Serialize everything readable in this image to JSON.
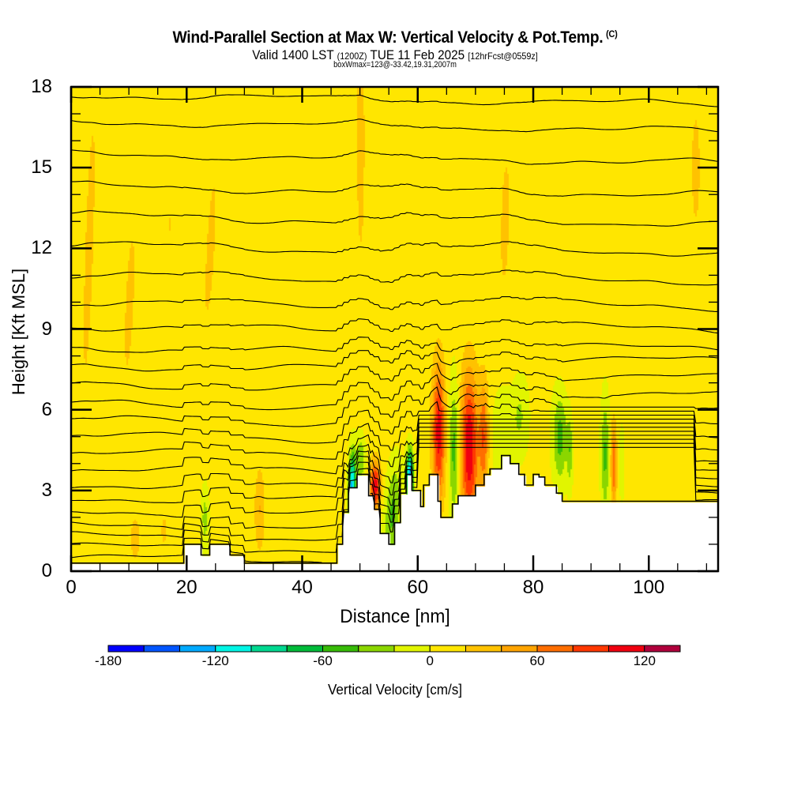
{
  "chart_data": {
    "type": "heatmap",
    "title": "Wind-Parallel Section at Max W: Vertical Velocity & Pot.Temp.",
    "title_mark": "(C)",
    "subtitle_main": "Valid 1400 LST",
    "subtitle_utc": "(1200Z)",
    "subtitle_date": "TUE 11 Feb 2025",
    "subtitle_fcst": "[12hrFcst@0559z]",
    "subtitle2": "boxWmax=123@-33.42,19.31,2007m",
    "xlabel": "Distance [nm]",
    "ylabel": "Height [Kft MSL]",
    "xlim": [
      0,
      112
    ],
    "ylim": [
      0,
      18
    ],
    "xticks": [
      "0",
      "20",
      "40",
      "60",
      "80",
      "100"
    ],
    "xtick_values": [
      0,
      20,
      40,
      60,
      80,
      100
    ],
    "yticks": [
      "0",
      "3",
      "6",
      "9",
      "12",
      "15",
      "18"
    ],
    "ytick_values": [
      0,
      3,
      6,
      9,
      12,
      15,
      18
    ],
    "colorbar": {
      "label": "Vertical Velocity [cm/s]",
      "bounds": [
        -180,
        -160,
        -140,
        -120,
        -100,
        -80,
        -60,
        -40,
        -20,
        0,
        20,
        40,
        60,
        80,
        100,
        120,
        140
      ],
      "colors": [
        "#0000ff",
        "#0055ff",
        "#00aaff",
        "#00f5e5",
        "#00d890",
        "#00bb3a",
        "#37bb08",
        "#8bd600",
        "#e1f500",
        "#ffe600",
        "#ffc200",
        "#ffa400",
        "#ff6e00",
        "#ff3800",
        "#f00010",
        "#b0003c"
      ],
      "tick_labels": [
        "-180",
        "-120",
        "-60",
        "0",
        "60",
        "120"
      ],
      "tick_values": [
        -180,
        -120,
        -60,
        0,
        60,
        120
      ]
    },
    "background_value": 5,
    "features": [
      {
        "x": 3,
        "z": 12,
        "sx": 1.5,
        "sz": 10,
        "w": 18,
        "tilt": 0.15
      },
      {
        "x": 10,
        "z": 10,
        "sx": 2.5,
        "sz": 9,
        "w": 16,
        "tilt": 0.2
      },
      {
        "x": 17,
        "z": 13,
        "sx": 2.0,
        "sz": 8,
        "w": 15,
        "tilt": 0.15
      },
      {
        "x": 24,
        "z": 12,
        "sx": 2.5,
        "sz": 9,
        "w": 16,
        "tilt": 0.25
      },
      {
        "x": 38,
        "z": 13,
        "sx": 2.5,
        "sz": 8,
        "w": 15,
        "tilt": 0.2
      },
      {
        "x": 50,
        "z": 16,
        "sx": 1.0,
        "sz": 6,
        "w": 22,
        "tilt": 0.0
      },
      {
        "x": 57,
        "z": 13,
        "sx": 2.5,
        "sz": 7,
        "w": 15,
        "tilt": -0.1
      },
      {
        "x": 75,
        "z": 13,
        "sx": 2.5,
        "sz": 8,
        "w": 16,
        "tilt": 0.1
      },
      {
        "x": 88,
        "z": 14,
        "sx": 3.0,
        "sz": 7,
        "w": 14,
        "tilt": 0.1
      },
      {
        "x": 100,
        "z": 14,
        "sx": 2.5,
        "sz": 7,
        "w": 15,
        "tilt": -0.2
      },
      {
        "x": 108,
        "z": 15,
        "sx": 2.5,
        "sz": 7,
        "w": 16,
        "tilt": 0.0
      },
      {
        "x": 11,
        "z": 1.2,
        "sx": 0.8,
        "sz": 0.8,
        "w": 28,
        "tilt": 0
      },
      {
        "x": 16,
        "z": 1.5,
        "sx": 1.2,
        "sz": 1.2,
        "w": 15,
        "tilt": 0
      },
      {
        "x": 23,
        "z": 2.0,
        "sx": 0.7,
        "sz": 1.3,
        "w": -35,
        "tilt": 0
      },
      {
        "x": 32.5,
        "z": 2.3,
        "sx": 0.9,
        "sz": 1.6,
        "w": 35,
        "tilt": 0
      },
      {
        "x": 48.5,
        "z": 3.2,
        "sx": 0.6,
        "sz": 1.2,
        "w": -130,
        "tilt": 0.1
      },
      {
        "x": 52.5,
        "z": 3.2,
        "sx": 0.9,
        "sz": 0.9,
        "w": 110,
        "tilt": 0
      },
      {
        "x": 55.5,
        "z": 2.2,
        "sx": 1.3,
        "sz": 1.8,
        "w": -50,
        "tilt": 0.3
      },
      {
        "x": 58.5,
        "z": 3.5,
        "sx": 0.6,
        "sz": 1.0,
        "w": -150,
        "tilt": 0
      },
      {
        "x": 50,
        "z": 4.2,
        "sx": 0.7,
        "sz": 0.8,
        "w": -45,
        "tilt": 0
      },
      {
        "x": 63.5,
        "z": 5.2,
        "sx": 1.1,
        "sz": 2.5,
        "w": 105,
        "tilt": 0
      },
      {
        "x": 66.2,
        "z": 4.5,
        "sx": 0.9,
        "sz": 2.4,
        "w": -55,
        "tilt": 0
      },
      {
        "x": 68.8,
        "z": 4.6,
        "sx": 1.5,
        "sz": 2.8,
        "w": 115,
        "tilt": 0
      },
      {
        "x": 71.3,
        "z": 5.0,
        "sx": 0.8,
        "sz": 2.0,
        "w": 70,
        "tilt": 0
      },
      {
        "x": 74.5,
        "z": 5.0,
        "sx": 1.8,
        "sz": 2.2,
        "w": -30,
        "tilt": 0
      },
      {
        "x": 77.5,
        "z": 5.8,
        "sx": 1.4,
        "sz": 1.4,
        "w": -28,
        "tilt": 0
      },
      {
        "x": 84.5,
        "z": 5.0,
        "sx": 1.2,
        "sz": 1.6,
        "w": -55,
        "tilt": 0
      },
      {
        "x": 86.2,
        "z": 4.5,
        "sx": 0.5,
        "sz": 1.3,
        "w": -40,
        "tilt": 0
      },
      {
        "x": 92.3,
        "z": 4.3,
        "sx": 0.7,
        "sz": 2.0,
        "w": -50,
        "tilt": 0
      },
      {
        "x": 93.8,
        "z": 4.0,
        "sx": 0.5,
        "sz": 1.5,
        "w": 75,
        "tilt": 0
      },
      {
        "x": 95.2,
        "z": 4.0,
        "sx": 0.4,
        "sz": 1.2,
        "w": -25,
        "tilt": 0
      },
      {
        "x": 109.5,
        "z": 4.5,
        "sx": 0.8,
        "sz": 2.0,
        "w": 12,
        "tilt": 0
      }
    ],
    "terrain": {
      "x": [
        0,
        19.5,
        19.5,
        22.5,
        22.5,
        24,
        24,
        27.5,
        27.5,
        30,
        30,
        46,
        46,
        47,
        47,
        48,
        48,
        49.5,
        49.5,
        51.5,
        51.5,
        52.5,
        52.5,
        53.5,
        53.5,
        55,
        55,
        56,
        56,
        57,
        57,
        58,
        58,
        59,
        59,
        60.5,
        60.5,
        61,
        61,
        62,
        62,
        63.5,
        63.5,
        64,
        64,
        66,
        66,
        67,
        67,
        70,
        70,
        71.5,
        71.5,
        72.5,
        72.5,
        74.5,
        74.5,
        76,
        76,
        77.5,
        77.5,
        78.5,
        78.5,
        80,
        80,
        81,
        81,
        82,
        82,
        84,
        84,
        85,
        85,
        86.5,
        86.5,
        88.5,
        88.5,
        89.5,
        89.5,
        110.5,
        110.5,
        112
      ],
      "z": [
        0.3,
        0.3,
        1.0,
        1.0,
        0.6,
        0.6,
        1.0,
        1.0,
        0.6,
        0.6,
        0.3,
        0.3,
        1.0,
        1.0,
        2.2,
        2.2,
        3.1,
        3.1,
        3.6,
        3.6,
        2.8,
        2.8,
        2.3,
        2.3,
        1.4,
        1.4,
        1.0,
        1.0,
        1.8,
        1.8,
        2.9,
        2.9,
        3.6,
        3.6,
        3.0,
        3.0,
        2.4,
        2.4,
        3.2,
        3.2,
        3.6,
        3.6,
        2.6,
        2.6,
        2.0,
        2.0,
        2.5,
        2.5,
        2.8,
        2.8,
        3.2,
        3.2,
        3.6,
        3.6,
        3.8,
        3.8,
        4.3,
        4.3,
        4.0,
        4.0,
        3.6,
        3.6,
        3.2,
        3.2,
        3.6,
        3.6,
        3.5,
        3.5,
        3.2,
        3.2,
        2.9,
        2.9,
        2.6,
        2.6,
        2.6,
        2.6,
        2.6,
        2.6,
        2.6,
        2.6,
        2.6,
        2.6
      ]
    },
    "theta_levels": [
      {
        "z0": 0.5
      },
      {
        "z0": 0.9
      },
      {
        "z0": 1.3
      },
      {
        "z0": 1.7
      },
      {
        "z0": 2.2
      },
      {
        "z0": 2.7
      },
      {
        "z0": 3.2
      },
      {
        "z0": 3.8
      },
      {
        "z0": 4.4
      },
      {
        "z0": 5.0
      },
      {
        "z0": 5.6
      },
      {
        "z0": 6.2
      },
      {
        "z0": 6.9
      },
      {
        "z0": 7.6
      },
      {
        "z0": 8.3
      },
      {
        "z0": 9.1
      },
      {
        "z0": 10.0
      },
      {
        "z0": 11.0
      },
      {
        "z0": 12.1
      },
      {
        "z0": 13.2
      },
      {
        "z0": 14.3
      },
      {
        "z0": 15.5
      },
      {
        "z0": 16.7
      },
      {
        "z0": 17.7
      }
    ]
  }
}
